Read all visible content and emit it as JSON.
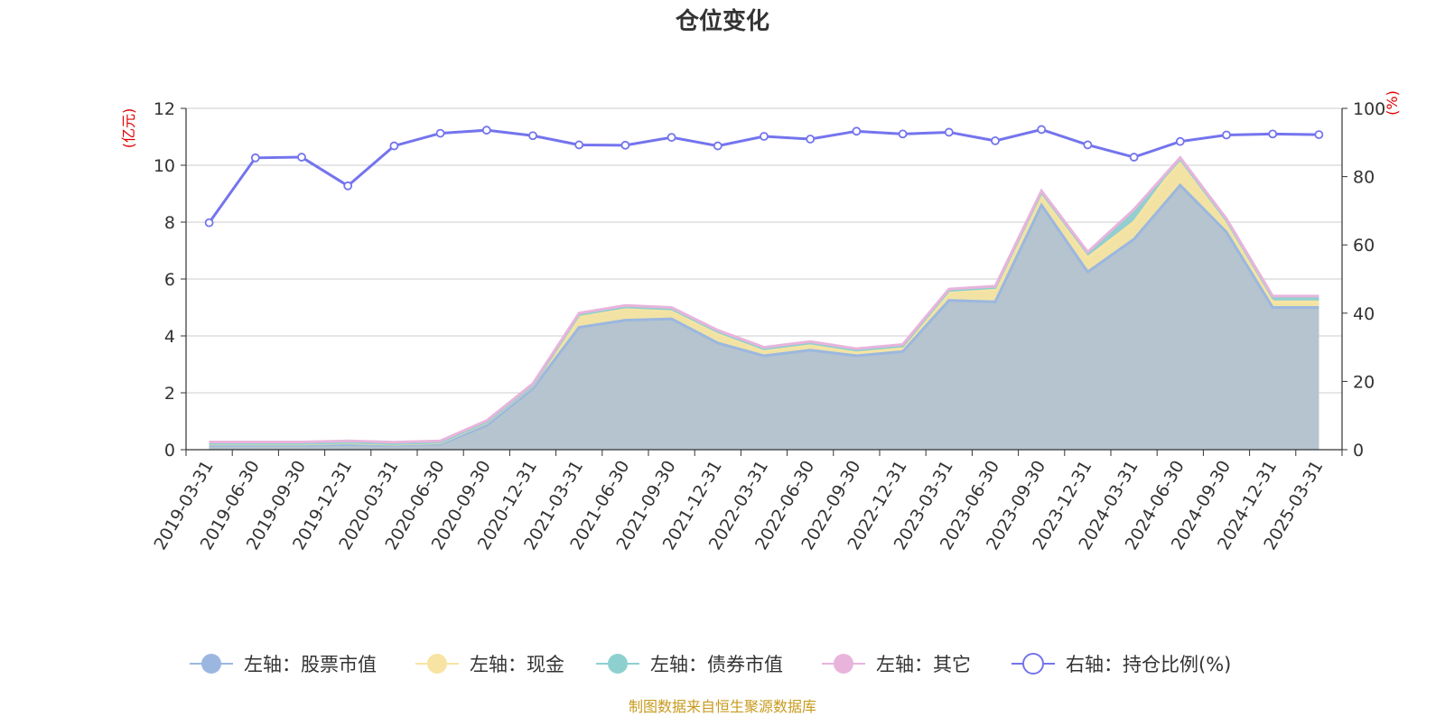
{
  "chart_data": {
    "type": "area",
    "title": "仓位变化",
    "left_axis": {
      "unit": "(亿元)",
      "range": [
        0,
        12
      ],
      "ticks": [
        "0",
        "2",
        "4",
        "6",
        "8",
        "10",
        "12"
      ]
    },
    "right_axis": {
      "unit": "(%)",
      "range": [
        0,
        100
      ],
      "ticks": [
        "0",
        "20",
        "40",
        "60",
        "80",
        "100"
      ]
    },
    "categories": [
      "2019-03-31",
      "2019-06-30",
      "2019-09-30",
      "2019-12-31",
      "2020-03-31",
      "2020-06-30",
      "2020-09-30",
      "2020-12-31",
      "2021-03-31",
      "2021-06-30",
      "2021-09-30",
      "2021-12-31",
      "2022-03-31",
      "2022-06-30",
      "2022-09-30",
      "2022-12-31",
      "2023-03-31",
      "2023-06-30",
      "2023-09-30",
      "2023-12-31",
      "2024-03-31",
      "2024-06-30",
      "2024-09-30",
      "2024-12-31",
      "2025-03-31"
    ],
    "grid": true,
    "legend_position": "bottom",
    "series": [
      {
        "name": "左轴：股票市值",
        "type": "area",
        "stack": "left",
        "axis": "left",
        "color": "#9bb7e0",
        "values": [
          0.15,
          0.16,
          0.16,
          0.18,
          0.15,
          0.2,
          0.85,
          2.15,
          4.3,
          4.55,
          4.6,
          3.75,
          3.3,
          3.5,
          3.3,
          3.45,
          5.25,
          5.2,
          8.6,
          6.25,
          7.4,
          9.3,
          7.65,
          5.0,
          5.0
        ]
      },
      {
        "name": "左轴：现金",
        "type": "area",
        "stack": "left",
        "axis": "left",
        "color": "#f7e4a2",
        "values": [
          0.05,
          0.04,
          0.04,
          0.06,
          0.04,
          0.04,
          0.1,
          0.1,
          0.4,
          0.42,
          0.3,
          0.35,
          0.2,
          0.2,
          0.15,
          0.15,
          0.3,
          0.45,
          0.4,
          0.5,
          0.6,
          0.9,
          0.4,
          0.2,
          0.2
        ]
      },
      {
        "name": "左轴：债券市值",
        "type": "area",
        "stack": "left",
        "axis": "left",
        "color": "#8ed0cf",
        "values": [
          0.02,
          0.02,
          0.02,
          0.02,
          0.02,
          0.02,
          0.02,
          0.02,
          0.05,
          0.05,
          0.05,
          0.05,
          0.05,
          0.05,
          0.05,
          0.05,
          0.05,
          0.05,
          0.05,
          0.15,
          0.4,
          0.02,
          0.02,
          0.15,
          0.15
        ]
      },
      {
        "name": "左轴：其它",
        "type": "area",
        "stack": "left",
        "axis": "left",
        "color": "#e8b4dc",
        "values": [
          0.05,
          0.05,
          0.05,
          0.05,
          0.05,
          0.05,
          0.05,
          0.05,
          0.05,
          0.05,
          0.05,
          0.05,
          0.05,
          0.05,
          0.05,
          0.05,
          0.05,
          0.05,
          0.05,
          0.05,
          0.05,
          0.05,
          0.05,
          0.05,
          0.05
        ]
      },
      {
        "name": "右轴：持仓比例(%)",
        "type": "line",
        "axis": "right",
        "color": "#7474ee",
        "values": [
          66.5,
          85.5,
          85.7,
          77.3,
          89,
          92.7,
          93.6,
          92,
          89.3,
          89.2,
          91.5,
          89,
          91.8,
          91,
          93.3,
          92.5,
          93,
          90.5,
          93.8,
          89.3,
          85.7,
          90.3,
          92.2,
          92.5,
          92.3
        ]
      }
    ],
    "source": "制图数据来自恒生聚源数据库"
  }
}
